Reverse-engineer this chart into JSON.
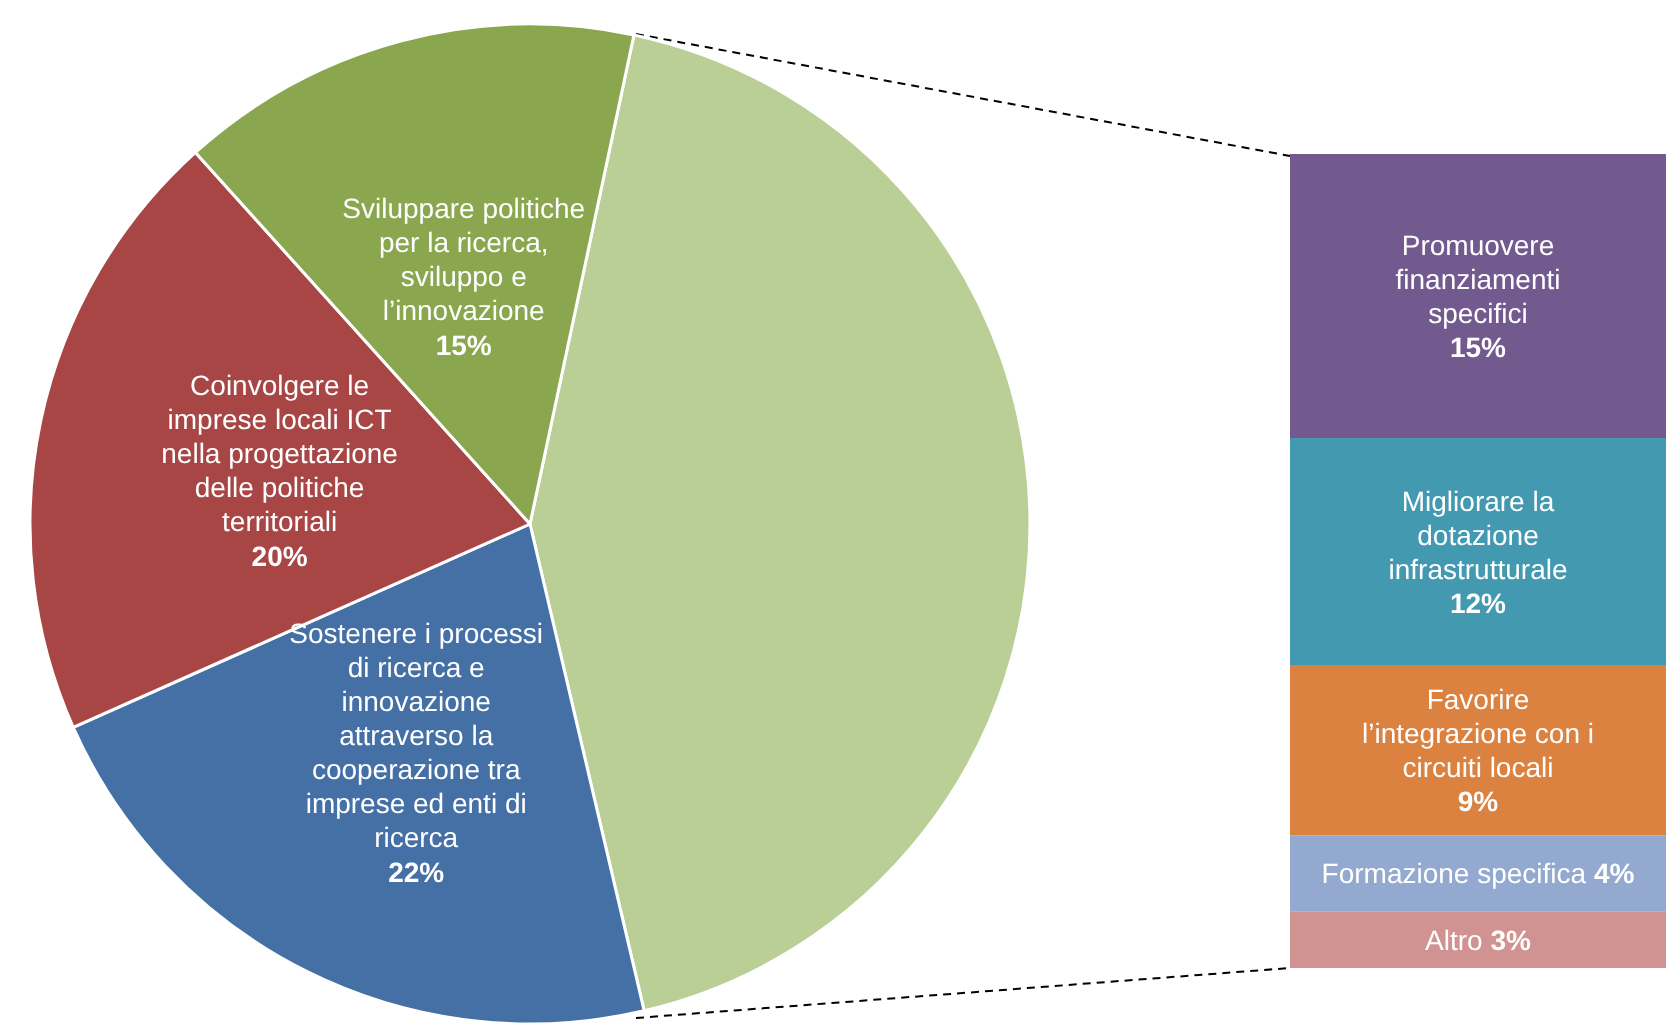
{
  "chart_data": [
    {
      "type": "pie",
      "categories": [
        null,
        "Sostenere i processi di ricerca e innovazione attraverso la cooperazione tra imprese ed enti di ricerca",
        "Coinvolgere le imprese locali ICT nella progettazione delle politiche territoriali",
        "Sviluppare politiche per la ricerca, sviluppo e l’innovazione"
      ],
      "values": [
        43,
        22,
        20,
        15
      ],
      "value_labels": [
        null,
        "22%",
        "20%",
        "15%"
      ],
      "colors": [
        "#b9cf96",
        "#4470a5",
        "#a84646",
        "#8aa74f"
      ]
    },
    {
      "type": "bar",
      "stacked": true,
      "categories": [
        null
      ],
      "series": [
        {
          "name": "Altro",
          "color": "#d19391",
          "values": [
            3
          ],
          "value_labels": [
            "3%"
          ]
        },
        {
          "name": "Formazione specifica",
          "color": "#93a9cf",
          "values": [
            4
          ],
          "value_labels": [
            "4%"
          ]
        },
        {
          "name": "Favorire l’integrazione con i circuiti locali",
          "color": "#dc8240",
          "values": [
            9
          ],
          "value_labels": [
            "9%"
          ]
        },
        {
          "name": "Migliorare la dotazione infrastrutturale",
          "color": "#4299b0",
          "values": [
            12
          ],
          "value_labels": [
            "12%"
          ]
        },
        {
          "name": "Promuovere finanziamenti specifici",
          "color": "#725a8e",
          "values": [
            15
          ],
          "value_labels": [
            "15%"
          ]
        }
      ]
    }
  ]
}
